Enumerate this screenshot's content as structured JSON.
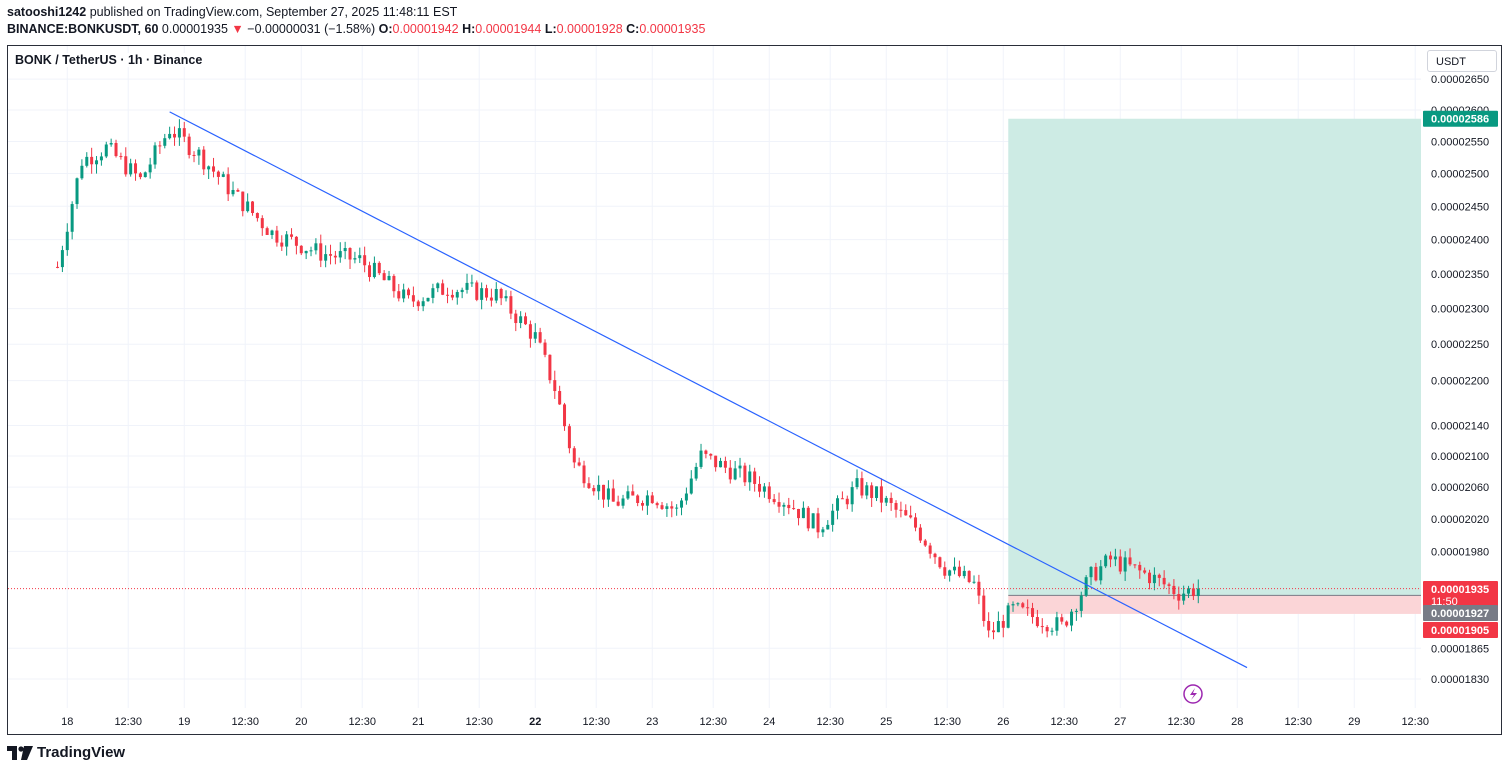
{
  "header": {
    "publisher_line": "satooshi1242 published on TradingView.com, September 27, 2025 11:48:11 EST",
    "publisher": "satooshi1242",
    "published_rest": " published on TradingView.com, September 27, 2025 11:48:11 EST",
    "symbol_full": "BINANCE:BONKUSDT, 60",
    "last": "0.00001935",
    "change": "−0.00000031 (−1.58%)",
    "o_label": "O:",
    "o": "0.00001942",
    "h_label": "H:",
    "h": "0.00001944",
    "l_label": "L:",
    "l": "0.00001928",
    "c_label": "C:",
    "c": "0.00001935"
  },
  "legend": {
    "title": "BONK / TetherUS · 1h · Binance"
  },
  "currency_button": "USDT",
  "branding": "TradingView",
  "colors": {
    "up": "#089981",
    "down": "#f23645",
    "trendline": "#2962ff",
    "profit_zone": "#cdebe4",
    "loss_zone": "#fbd5d7",
    "grid": "#f0f3fa"
  },
  "chart_data": {
    "type": "candlestick",
    "timeframe": "1h",
    "y_axis": {
      "ticks": [
        "0.00002650",
        "0.00002600",
        "0.00002550",
        "0.00002500",
        "0.00002450",
        "0.00002400",
        "0.00002350",
        "0.00002300",
        "0.00002250",
        "0.00002200",
        "0.00002140",
        "0.00002100",
        "0.00002060",
        "0.00002020",
        "0.00001980",
        "0.00001865",
        "0.00001830"
      ],
      "range": [
        1.82e-05,
        2.67e-05
      ]
    },
    "x_axis": {
      "ticks": [
        "18",
        "12:30",
        "19",
        "12:30",
        "20",
        "12:30",
        "21",
        "12:30",
        "22",
        "12:30",
        "23",
        "12:30",
        "24",
        "12:30",
        "25",
        "12:30",
        "26",
        "12:30",
        "27",
        "12:30",
        "28",
        "12:30",
        "29",
        "12:30"
      ],
      "bold_ticks": [
        "22"
      ]
    },
    "price_labels": [
      {
        "value": "0.00002586",
        "kind": "target",
        "color": "#089981"
      },
      {
        "value": "0.00001935",
        "kind": "last",
        "countdown": "11:50",
        "color": "#f23645"
      },
      {
        "value": "0.00001927",
        "kind": "entry",
        "color": "#787b86"
      },
      {
        "value": "0.00001905",
        "kind": "stop",
        "color": "#f23645"
      }
    ],
    "position": {
      "type": "long",
      "entry": 1.927e-05,
      "target": 2.586e-05,
      "stop": 1.905e-05,
      "start_time": "26 00:00",
      "end_time": "28 19:00"
    },
    "trendline": {
      "from": {
        "time": "18 21:00",
        "price": 2.597e-05
      },
      "to": {
        "time": "28 02:00",
        "price": 1.843e-05
      }
    },
    "approx_close_path": [
      [
        "17 22:00",
        2.36e-05
      ],
      [
        "18 03:00",
        2.52e-05
      ],
      [
        "18 08:00",
        2.54e-05
      ],
      [
        "18 15:00",
        2.49e-05
      ],
      [
        "18 21:00",
        2.57e-05
      ],
      [
        "19 03:00",
        2.53e-05
      ],
      [
        "19 10:00",
        2.47e-05
      ],
      [
        "19 18:00",
        2.41e-05
      ],
      [
        "20 04:00",
        2.38e-05
      ],
      [
        "20 12:00",
        2.37e-05
      ],
      [
        "20 22:00",
        2.31e-05
      ],
      [
        "21 06:00",
        2.33e-05
      ],
      [
        "21 16:00",
        2.32e-05
      ],
      [
        "22 00:00",
        2.26e-05
      ],
      [
        "22 04:00",
        2.19e-05
      ],
      [
        "22 08:00",
        2.09e-05
      ],
      [
        "22 16:00",
        2.04e-05
      ],
      [
        "23 00:00",
        2.05e-05
      ],
      [
        "23 05:00",
        2.03e-05
      ],
      [
        "23 10:00",
        2.1e-05
      ],
      [
        "23 20:00",
        2.07e-05
      ],
      [
        "24 04:00",
        2.04e-05
      ],
      [
        "24 10:00",
        2.01e-05
      ],
      [
        "24 18:00",
        2.06e-05
      ],
      [
        "24 22:00",
        2.05e-05
      ],
      [
        "25 06:00",
        2.01e-05
      ],
      [
        "25 12:00",
        1.96e-05
      ],
      [
        "25 18:00",
        1.94e-05
      ],
      [
        "25 21:00",
        1.88e-05
      ],
      [
        "26 02:00",
        1.91e-05
      ],
      [
        "26 12:00",
        1.89e-05
      ],
      [
        "26 18:00",
        1.95e-05
      ],
      [
        "26 22:00",
        1.97e-05
      ],
      [
        "27 06:00",
        1.95e-05
      ],
      [
        "27 12:00",
        1.93e-05
      ],
      [
        "27 16:00",
        1.935e-05
      ]
    ]
  }
}
